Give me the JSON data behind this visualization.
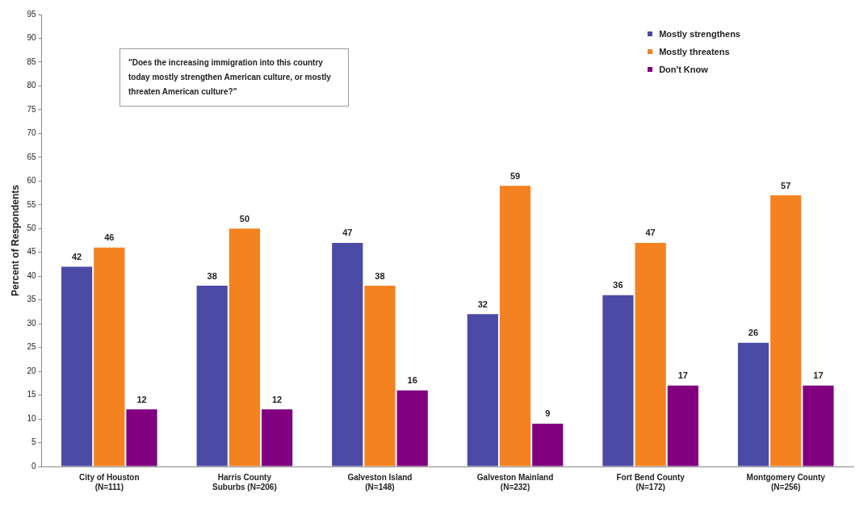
{
  "chart_data": {
    "type": "bar",
    "ylabel": "Percent of Respondents",
    "categories": [
      "City of Houston\n(N=111)",
      "Harris County\nSuburbs (N=206)",
      "Galveston Island\n(N=148)",
      "Galveston Mainland\n(N=232)",
      "Fort Bend County\n(N=172)",
      "Montgomery County\n(N=256)"
    ],
    "series": [
      {
        "name": "Mostly strengthens",
        "color": "#4b4ba6",
        "values": [
          42,
          38,
          47,
          32,
          36,
          26
        ]
      },
      {
        "name": "Mostly threatens",
        "color": "#f58220",
        "values": [
          46,
          50,
          38,
          59,
          47,
          57
        ]
      },
      {
        "name": "Don't Know",
        "color": "#800080",
        "values": [
          12,
          12,
          16,
          9,
          17,
          17
        ]
      }
    ],
    "ylim": [
      0,
      95
    ],
    "yticks": [
      0,
      5,
      10,
      15,
      20,
      25,
      30,
      35,
      40,
      45,
      50,
      55,
      60,
      65,
      70,
      75,
      80,
      85,
      90,
      95
    ],
    "grid": false,
    "legend": "top right",
    "data_labels": true,
    "annotations": [
      "\"Does the increasing immigration into this country today mostly strengthen American culture, or mostly threaten American culture?\""
    ]
  }
}
